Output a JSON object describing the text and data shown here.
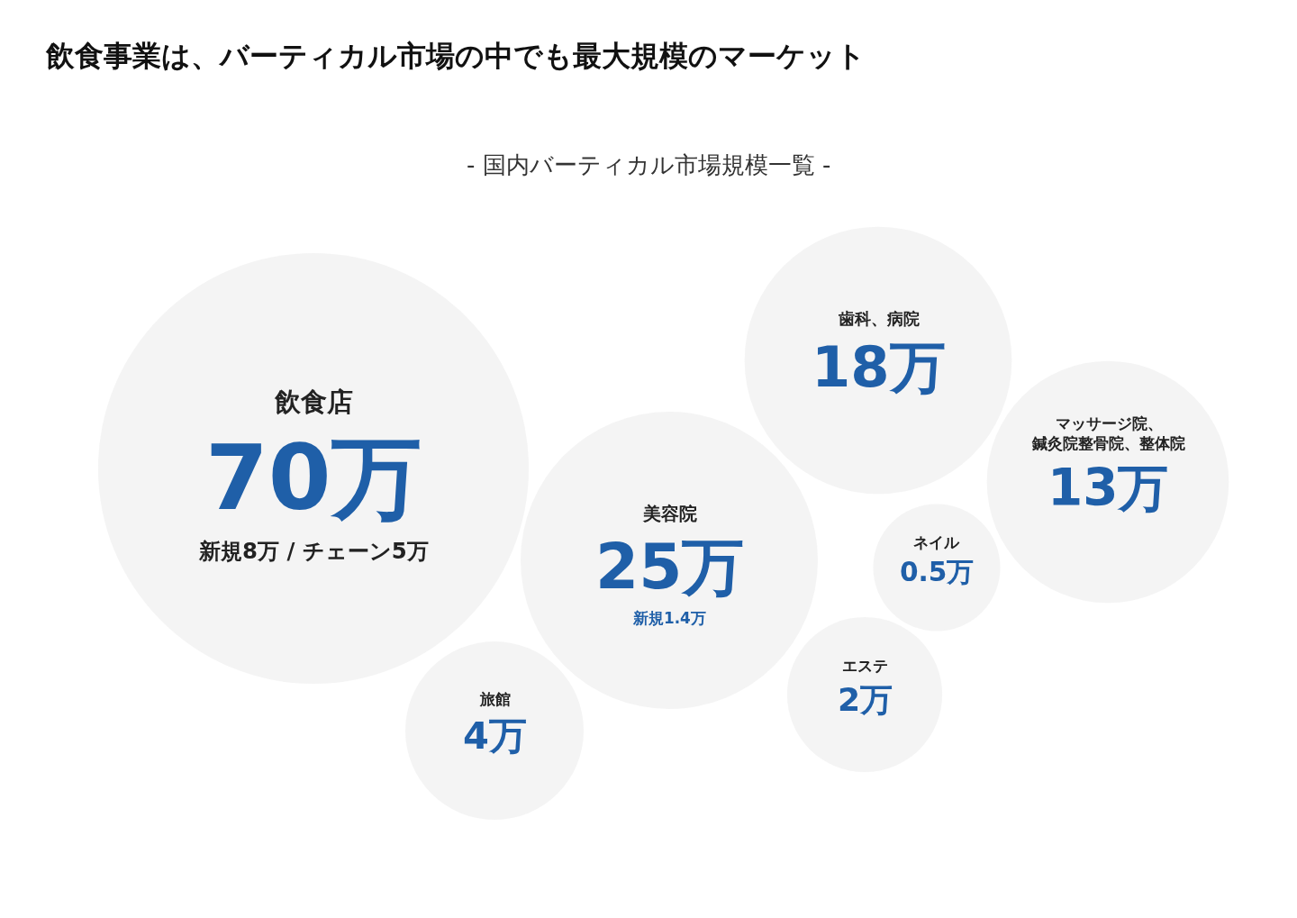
{
  "chart_data": {
    "type": "other",
    "title": "飲食事業は、バーティカル市場の中でも最大規模のマーケット",
    "subtitle": "- 国内バーティカル市場規模一覧 -",
    "categories": [
      "飲食店",
      "美容院",
      "旅館",
      "歯科、病院",
      "エステ",
      "ネイル",
      "マッサージ院、鍼灸院整骨院、整体院"
    ],
    "values": [
      70,
      25,
      4,
      18,
      2,
      0.5,
      13
    ],
    "value_labels": [
      "70万",
      "25万",
      "4万",
      "18万",
      "2万",
      "0.5万",
      "13万"
    ],
    "colors": [
      "#efefef",
      "#efefef",
      "#efefef",
      "#efefef",
      "#efefef",
      "#efefef",
      "#efefef"
    ],
    "annotations": [
      {
        "text": "新規8万 / チェーン5万",
        "x": "飲食店"
      },
      {
        "text": "新規1.4万",
        "x": "美容院"
      }
    ]
  }
}
